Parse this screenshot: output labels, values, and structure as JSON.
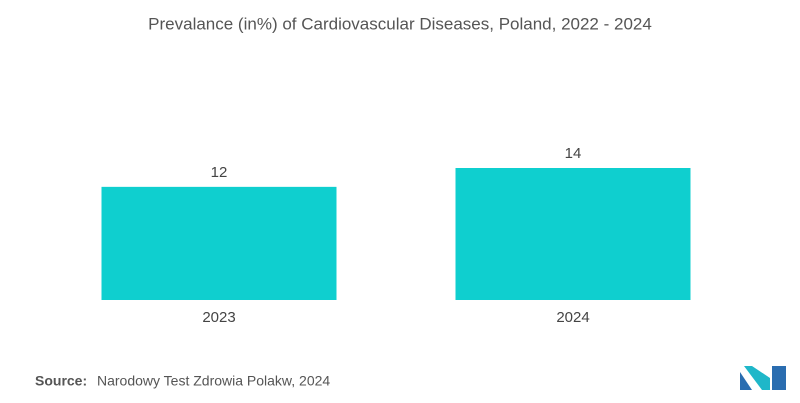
{
  "chart_data": {
    "type": "bar",
    "title": "Prevalance (in%) of Cardiovascular Diseases, Poland, 2022 - 2024",
    "categories": [
      "2023",
      "2024"
    ],
    "values": [
      12,
      14
    ],
    "color": "#0fcfcf"
  },
  "source": {
    "label": "Source:",
    "text": "Narodowy Test Zdrowia Polakw, 2024"
  }
}
